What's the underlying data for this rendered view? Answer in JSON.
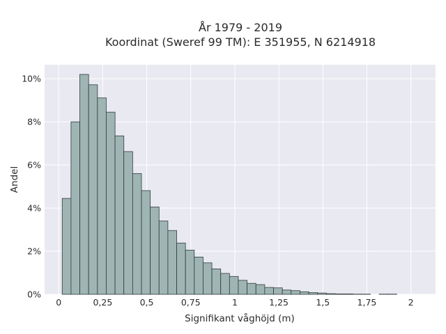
{
  "chart_data": {
    "type": "bar",
    "title": "År 1979 - 2019",
    "subtitle": "Koordinat (Sweref 99 TM): E 351955, N 6214918",
    "xlabel": "Signifikant våghöjd (m)",
    "ylabel": "Andel",
    "bin_width": 0.05,
    "xlim": [
      -0.08,
      2.14
    ],
    "ylim": [
      0,
      0.1065
    ],
    "x_ticks": [
      {
        "value": 0,
        "label": "0"
      },
      {
        "value": 0.25,
        "label": "0,25"
      },
      {
        "value": 0.5,
        "label": "0,5"
      },
      {
        "value": 0.75,
        "label": "0,75"
      },
      {
        "value": 1,
        "label": "1"
      },
      {
        "value": 1.25,
        "label": "1,25"
      },
      {
        "value": 1.5,
        "label": "1,5"
      },
      {
        "value": 1.75,
        "label": "1,75"
      },
      {
        "value": 2,
        "label": "2"
      }
    ],
    "y_ticks": [
      {
        "value": 0,
        "label": "0%"
      },
      {
        "value": 0.02,
        "label": "2%"
      },
      {
        "value": 0.04,
        "label": "4%"
      },
      {
        "value": 0.06,
        "label": "6%"
      },
      {
        "value": 0.08,
        "label": "8%"
      },
      {
        "value": 0.1,
        "label": "10%"
      }
    ],
    "bins": [
      {
        "x0": 0.02,
        "value": 0.0445
      },
      {
        "x0": 0.07,
        "value": 0.08
      },
      {
        "x0": 0.12,
        "value": 0.102
      },
      {
        "x0": 0.17,
        "value": 0.0972
      },
      {
        "x0": 0.22,
        "value": 0.0911
      },
      {
        "x0": 0.27,
        "value": 0.0845
      },
      {
        "x0": 0.32,
        "value": 0.0735
      },
      {
        "x0": 0.37,
        "value": 0.0662
      },
      {
        "x0": 0.42,
        "value": 0.056
      },
      {
        "x0": 0.47,
        "value": 0.0481
      },
      {
        "x0": 0.52,
        "value": 0.0405
      },
      {
        "x0": 0.57,
        "value": 0.034
      },
      {
        "x0": 0.62,
        "value": 0.0296
      },
      {
        "x0": 0.67,
        "value": 0.0238
      },
      {
        "x0": 0.72,
        "value": 0.0205
      },
      {
        "x0": 0.77,
        "value": 0.0173
      },
      {
        "x0": 0.82,
        "value": 0.0146
      },
      {
        "x0": 0.87,
        "value": 0.0118
      },
      {
        "x0": 0.92,
        "value": 0.0097
      },
      {
        "x0": 0.97,
        "value": 0.0083
      },
      {
        "x0": 1.02,
        "value": 0.0065
      },
      {
        "x0": 1.07,
        "value": 0.0051
      },
      {
        "x0": 1.12,
        "value": 0.0045
      },
      {
        "x0": 1.17,
        "value": 0.0032
      },
      {
        "x0": 1.22,
        "value": 0.003
      },
      {
        "x0": 1.27,
        "value": 0.002
      },
      {
        "x0": 1.32,
        "value": 0.0017
      },
      {
        "x0": 1.37,
        "value": 0.0012
      },
      {
        "x0": 1.42,
        "value": 0.0008
      },
      {
        "x0": 1.47,
        "value": 0.0006
      },
      {
        "x0": 1.52,
        "value": 0.0003
      },
      {
        "x0": 1.57,
        "value": 0.0002
      },
      {
        "x0": 1.62,
        "value": 0.0002
      },
      {
        "x0": 1.67,
        "value": 0.0001
      },
      {
        "x0": 1.72,
        "value": 0.0001
      },
      {
        "x0": 1.77,
        "value": 0.0
      },
      {
        "x0": 1.82,
        "value": 0.0001
      },
      {
        "x0": 1.87,
        "value": 0.0001
      }
    ],
    "grid": true,
    "colors": {
      "bar_fill": "#9fb5b3",
      "bar_stroke": "#2f3b3a",
      "plot_background": "#e9e9f1",
      "grid": "#ffffff"
    }
  }
}
